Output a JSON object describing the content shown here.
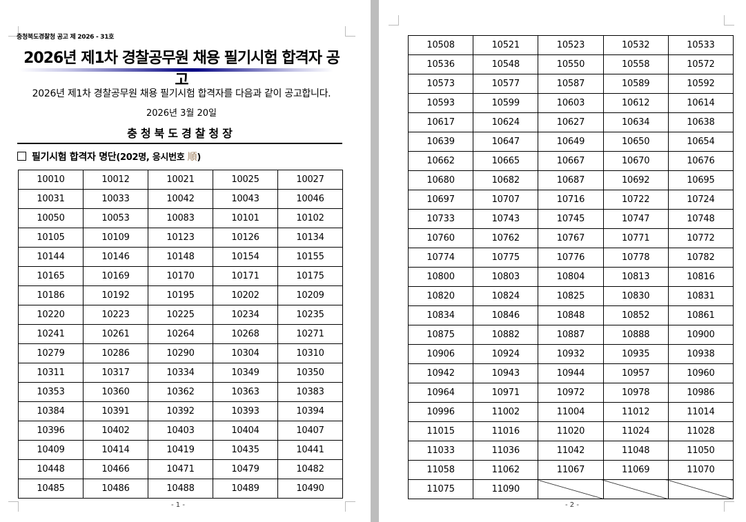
{
  "page1": {
    "doc_number": "충청북도경찰청 공고 제 2026 - 31호",
    "title": "2026년 제1차 경찰공무원 채용 필기시험 합격자 공고",
    "intro": "2026년 제1차 경찰공무원 채용 필기시험 합격자를 다음과 같이 공고합니다.",
    "date": "2026년 3월 20일",
    "agency": "충청북도경찰청장",
    "section_heading": "필기시험 합격자 명단",
    "section_sub": "(202명, 응시번호 ",
    "section_order": "順",
    "section_close": ")",
    "page_number": "- 1 -",
    "rows": [
      [
        "10010",
        "10012",
        "10021",
        "10025",
        "10027"
      ],
      [
        "10031",
        "10033",
        "10042",
        "10043",
        "10046"
      ],
      [
        "10050",
        "10053",
        "10083",
        "10101",
        "10102"
      ],
      [
        "10105",
        "10109",
        "10123",
        "10126",
        "10134"
      ],
      [
        "10144",
        "10146",
        "10148",
        "10154",
        "10155"
      ],
      [
        "10165",
        "10169",
        "10170",
        "10171",
        "10175"
      ],
      [
        "10186",
        "10192",
        "10195",
        "10202",
        "10209"
      ],
      [
        "10220",
        "10223",
        "10225",
        "10234",
        "10235"
      ],
      [
        "10241",
        "10261",
        "10264",
        "10268",
        "10271"
      ],
      [
        "10279",
        "10286",
        "10290",
        "10304",
        "10310"
      ],
      [
        "10311",
        "10317",
        "10334",
        "10349",
        "10350"
      ],
      [
        "10353",
        "10360",
        "10362",
        "10363",
        "10383"
      ],
      [
        "10384",
        "10391",
        "10392",
        "10393",
        "10394"
      ],
      [
        "10396",
        "10402",
        "10403",
        "10404",
        "10407"
      ],
      [
        "10409",
        "10414",
        "10419",
        "10435",
        "10441"
      ],
      [
        "10448",
        "10466",
        "10471",
        "10479",
        "10482"
      ],
      [
        "10485",
        "10486",
        "10488",
        "10489",
        "10490"
      ]
    ]
  },
  "page2": {
    "page_number": "- 2 -",
    "rows": [
      [
        "10508",
        "10521",
        "10523",
        "10532",
        "10533"
      ],
      [
        "10536",
        "10548",
        "10550",
        "10558",
        "10572"
      ],
      [
        "10573",
        "10577",
        "10587",
        "10589",
        "10592"
      ],
      [
        "10593",
        "10599",
        "10603",
        "10612",
        "10614"
      ],
      [
        "10617",
        "10624",
        "10627",
        "10634",
        "10638"
      ],
      [
        "10639",
        "10647",
        "10649",
        "10650",
        "10654"
      ],
      [
        "10662",
        "10665",
        "10667",
        "10670",
        "10676"
      ],
      [
        "10680",
        "10682",
        "10687",
        "10692",
        "10695"
      ],
      [
        "10697",
        "10707",
        "10716",
        "10722",
        "10724"
      ],
      [
        "10733",
        "10743",
        "10745",
        "10747",
        "10748"
      ],
      [
        "10760",
        "10762",
        "10767",
        "10771",
        "10772"
      ],
      [
        "10774",
        "10775",
        "10776",
        "10778",
        "10782"
      ],
      [
        "10800",
        "10803",
        "10804",
        "10813",
        "10816"
      ],
      [
        "10820",
        "10824",
        "10825",
        "10830",
        "10831"
      ],
      [
        "10834",
        "10846",
        "10848",
        "10852",
        "10861"
      ],
      [
        "10875",
        "10882",
        "10887",
        "10888",
        "10900"
      ],
      [
        "10906",
        "10924",
        "10932",
        "10935",
        "10938"
      ],
      [
        "10942",
        "10943",
        "10944",
        "10957",
        "10960"
      ],
      [
        "10964",
        "10971",
        "10972",
        "10978",
        "10986"
      ],
      [
        "10996",
        "11002",
        "11004",
        "11012",
        "11014"
      ],
      [
        "11015",
        "11016",
        "11020",
        "11024",
        "11028"
      ],
      [
        "11033",
        "11036",
        "11042",
        "11048",
        "11050"
      ],
      [
        "11058",
        "11062",
        "11067",
        "11069",
        "11070"
      ],
      [
        "11075",
        "11090",
        null,
        null,
        null
      ]
    ]
  },
  "colors": {
    "title_bar_accent": "#000080",
    "page_gap": "#a0a0a0"
  }
}
